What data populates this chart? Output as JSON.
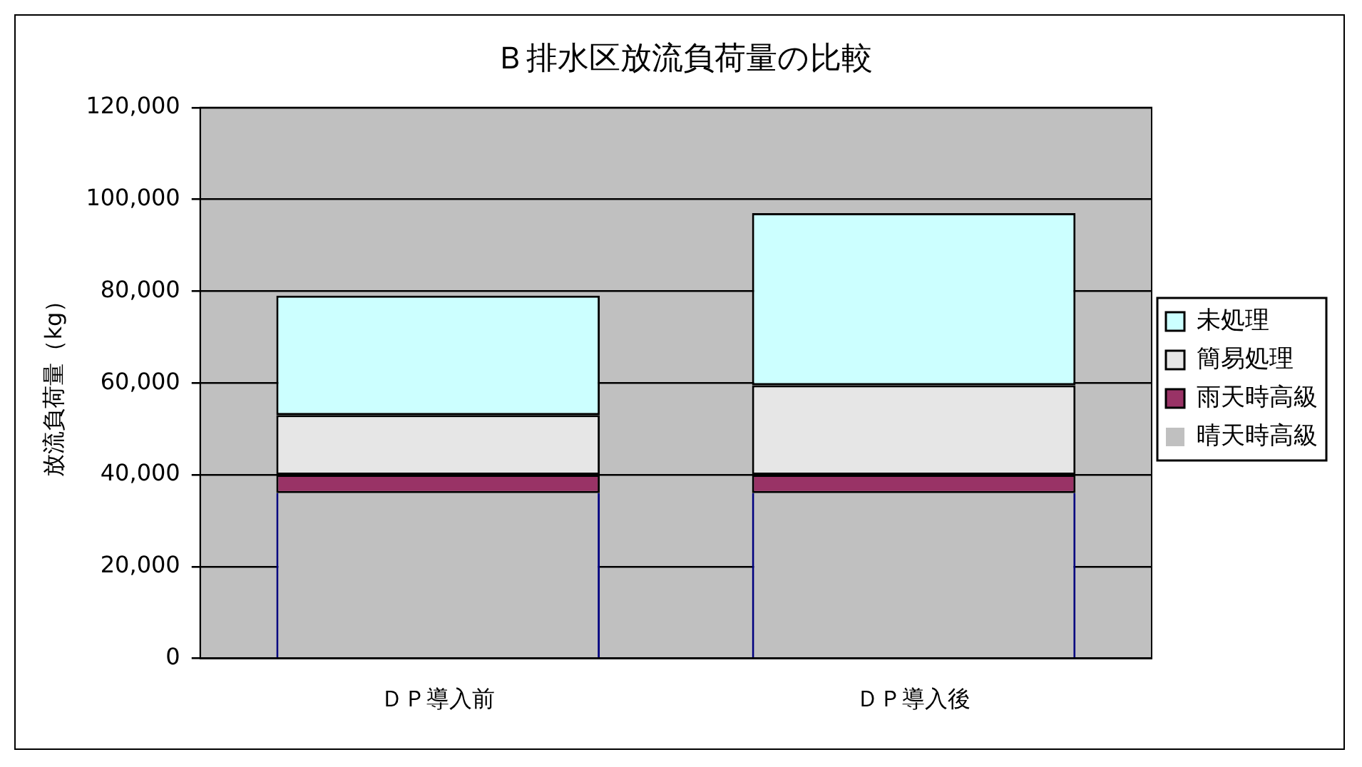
{
  "chart_data": {
    "type": "bar",
    "title": "Ｂ排水区放流負荷量の比較",
    "ylabel": "放流負荷量（kg）",
    "categories": [
      "ＤＰ導入前",
      "ＤＰ導入後"
    ],
    "series": [
      {
        "name": "晴天時高級",
        "color": "#c0c0c0",
        "values": [
          36000,
          36000
        ]
      },
      {
        "name": "雨天時高級",
        "color": "#993366",
        "values": [
          4000,
          4000
        ]
      },
      {
        "name": "簡易処理",
        "color": "#e6e6e6",
        "values": [
          13000,
          19500
        ]
      },
      {
        "name": "未処理",
        "color": "#ccffff",
        "values": [
          26000,
          37500
        ]
      }
    ],
    "stacked": true,
    "ylim": [
      0,
      120000
    ],
    "yticks": [
      0,
      {
        "value": 20000,
        "label": "20,000"
      },
      {
        "value": 40000,
        "label": "40,000"
      },
      {
        "value": 60000,
        "label": "60,000"
      },
      {
        "value": 80000,
        "label": "80,000"
      },
      {
        "value": 100000,
        "label": "100,000"
      },
      {
        "value": 120000,
        "label": "120,000"
      }
    ],
    "grid": "y",
    "legend": "right"
  }
}
